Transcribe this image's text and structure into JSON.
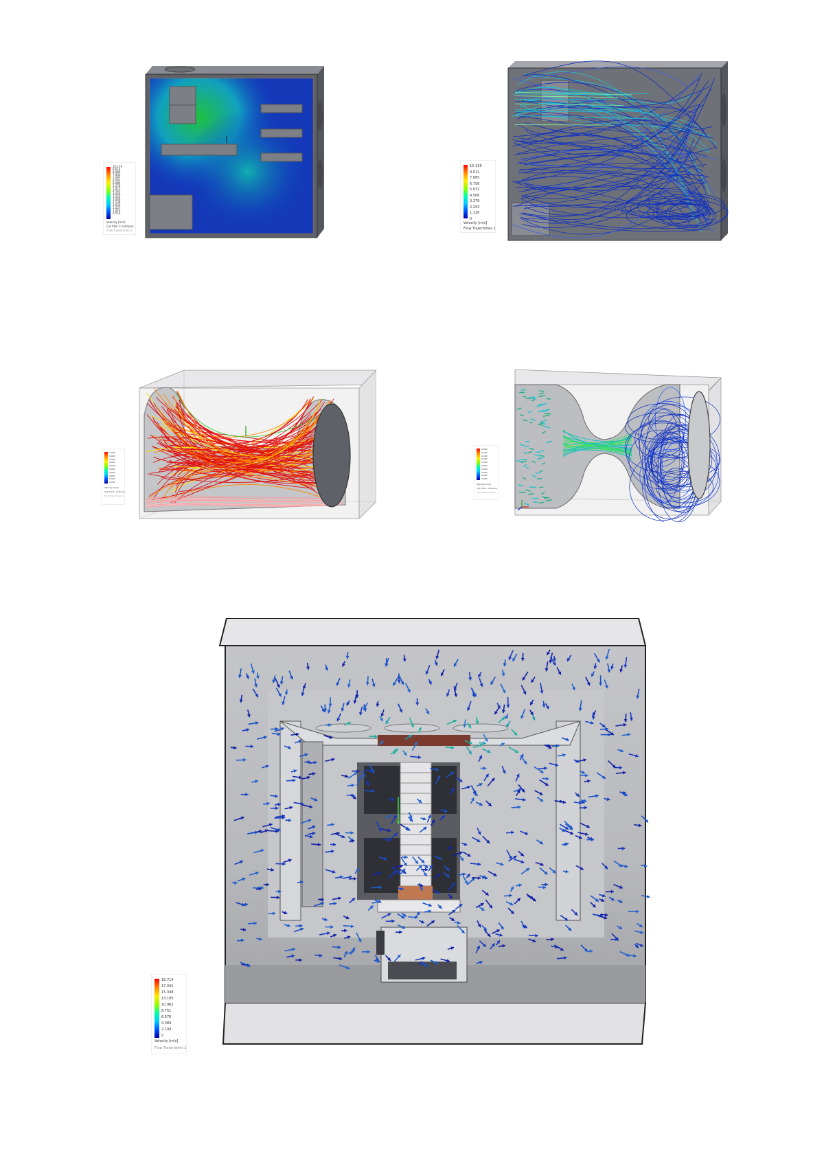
{
  "figures": [
    {
      "name": "case-contour-plot",
      "legend": {
        "ticks": [
          "10.139",
          "8.614",
          "8.089",
          "7.603",
          "7.097",
          "6.591",
          "6.084",
          "5.578",
          "5.071",
          "4.565",
          "4.058",
          "3.552",
          "3.046",
          "2.539",
          "2.033",
          "1.527",
          "1.020",
          "0.514"
        ],
        "unit": "Velocity [m/s]",
        "caption": "Cut Plot 1: contours",
        "subcaption": "Flow Trajectories 2"
      }
    },
    {
      "name": "case-streamline-plot",
      "legend": {
        "ticks": [
          "10.139",
          "9.011",
          "7.885",
          "6.758",
          "5.632",
          "4.506",
          "3.379",
          "2.253",
          "1.126",
          "0"
        ],
        "unit": "Velocity [m/s]",
        "caption": "Flow Trajectories 1",
        "subcaption": ""
      }
    },
    {
      "name": "duct-trajectory-plot",
      "legend": {
        "ticks": [
          "0.000",
          "0.000",
          "0.000",
          "0.000",
          "0.000",
          "0.000",
          "0.000",
          "0.000",
          "0.000",
          "0.000"
        ],
        "unit": "Velocity [m/s]",
        "caption": "Cut Plot 1: contours",
        "subcaption": "Flow Trajectories 1"
      }
    },
    {
      "name": "venturi-trajectory-plot",
      "legend": {
        "ticks": [
          "0.000",
          "0.000",
          "0.000",
          "0.000",
          "0.000",
          "0.000",
          "0.000",
          "0.000",
          "0.000",
          "0.000"
        ],
        "unit": "Velocity [m/s]",
        "caption": "Cut Plot 1: contours",
        "subcaption": "Flow Trajectories 1"
      }
    },
    {
      "name": "enclosure-vector-plot",
      "legend": {
        "ticks": [
          "18.714",
          "17.041",
          "15.348",
          "13.195",
          "10.962",
          "8.751",
          "6.576",
          "4.389",
          "2.194",
          "0"
        ],
        "unit": "Velocity [m/s]",
        "caption": "",
        "subcaption": "Flow Trajectories 2"
      }
    }
  ],
  "colors": {
    "case_gray": "#6f7178",
    "case_dark": "#3a3c42",
    "flow_blue": "#1030c0",
    "flow_cyan": "#20c0d0",
    "flow_red": "#e01010",
    "flow_green": "#40d040",
    "glass": "#d8d8d8"
  }
}
